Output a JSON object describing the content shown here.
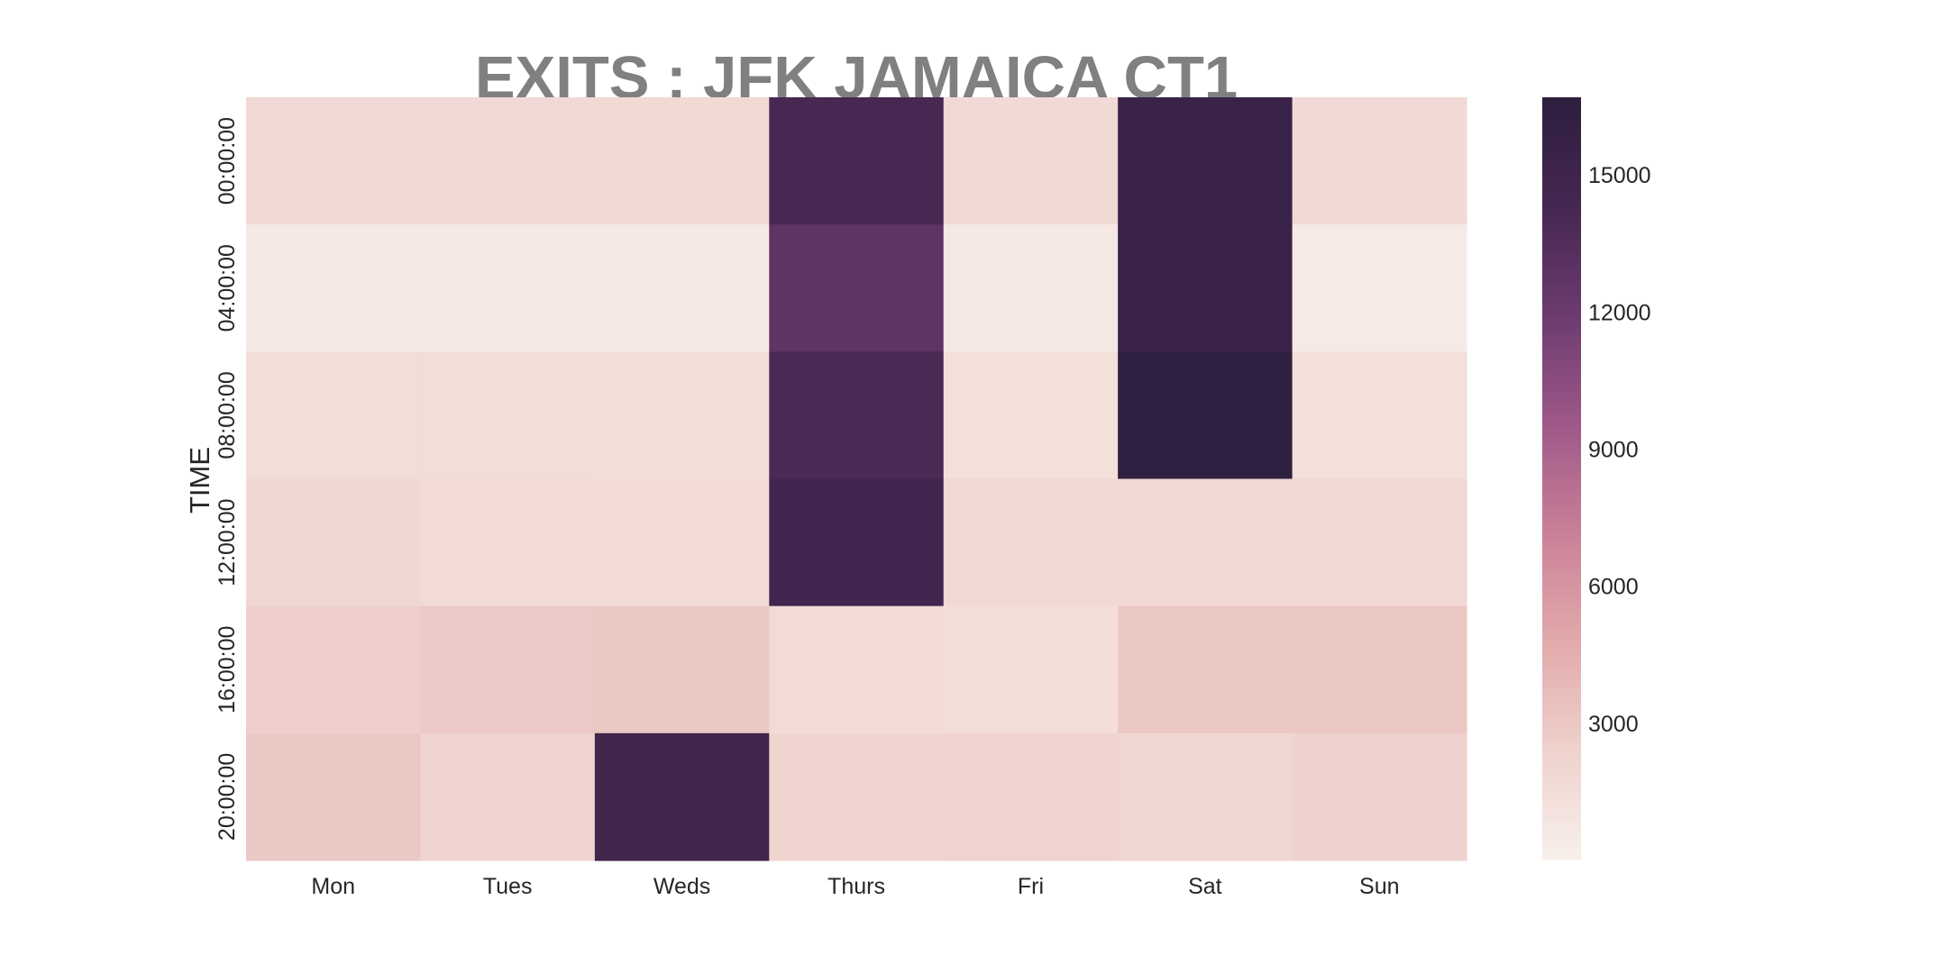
{
  "chart_data": {
    "type": "heatmap",
    "title": "EXITS : JFK JAMAICA CT1",
    "xlabel": "",
    "ylabel": "TIME",
    "x": [
      "Mon",
      "Tues",
      "Weds",
      "Thurs",
      "Fri",
      "Sat",
      "Sun"
    ],
    "y": [
      "00:00:00",
      "04:00:00",
      "08:00:00",
      "12:00:00",
      "16:00:00",
      "20:00:00"
    ],
    "values": [
      [
        1800,
        1800,
        1850,
        14200,
        1800,
        15400,
        1750
      ],
      [
        600,
        600,
        600,
        12800,
        600,
        15500,
        500
      ],
      [
        1500,
        1500,
        1400,
        14000,
        1300,
        16500,
        1300
      ],
      [
        2000,
        1700,
        1700,
        14600,
        1800,
        1900,
        1900
      ],
      [
        2600,
        2900,
        3000,
        1700,
        1400,
        3000,
        3000
      ],
      [
        3000,
        2200,
        14800,
        2200,
        2300,
        2100,
        2400
      ]
    ],
    "colorbar": {
      "min": 0,
      "max": 16700,
      "ticks": [
        3000,
        6000,
        9000,
        12000,
        15000
      ],
      "tick_labels": [
        "3000",
        "6000",
        "9000",
        "12000",
        "15000"
      ]
    },
    "colormap": [
      "#f8f0ec",
      "#efd2cd",
      "#e2aaab",
      "#ca8098",
      "#9e5888",
      "#6c3b6f",
      "#452751",
      "#2d1e3e"
    ]
  }
}
